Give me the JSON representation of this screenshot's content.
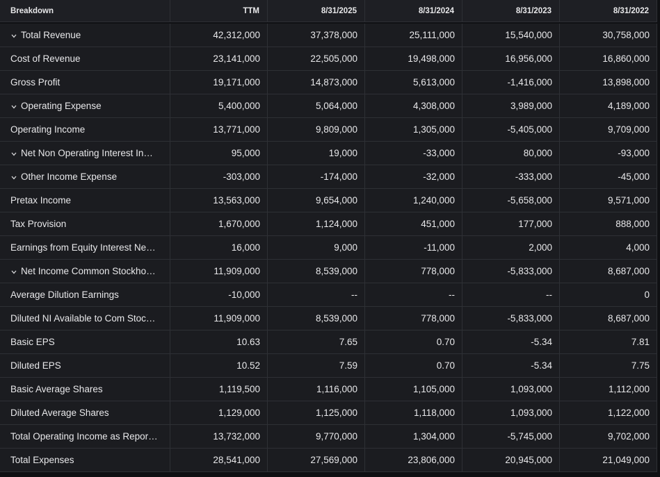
{
  "table": {
    "header": [
      "Breakdown",
      "TTM",
      "8/31/2025",
      "8/31/2024",
      "8/31/2023",
      "8/31/2022"
    ],
    "rows": [
      {
        "label": "Total Revenue",
        "expandable": true,
        "cells": [
          "42,312,000",
          "37,378,000",
          "25,111,000",
          "15,540,000",
          "30,758,000"
        ]
      },
      {
        "label": "Cost of Revenue",
        "expandable": false,
        "cells": [
          "23,141,000",
          "22,505,000",
          "19,498,000",
          "16,956,000",
          "16,860,000"
        ]
      },
      {
        "label": "Gross Profit",
        "expandable": false,
        "cells": [
          "19,171,000",
          "14,873,000",
          "5,613,000",
          "-1,416,000",
          "13,898,000"
        ]
      },
      {
        "label": "Operating Expense",
        "expandable": true,
        "cells": [
          "5,400,000",
          "5,064,000",
          "4,308,000",
          "3,989,000",
          "4,189,000"
        ]
      },
      {
        "label": "Operating Income",
        "expandable": false,
        "cells": [
          "13,771,000",
          "9,809,000",
          "1,305,000",
          "-5,405,000",
          "9,709,000"
        ]
      },
      {
        "label": "Net Non Operating Interest In…",
        "expandable": true,
        "cells": [
          "95,000",
          "19,000",
          "-33,000",
          "80,000",
          "-93,000"
        ]
      },
      {
        "label": "Other Income Expense",
        "expandable": true,
        "cells": [
          "-303,000",
          "-174,000",
          "-32,000",
          "-333,000",
          "-45,000"
        ]
      },
      {
        "label": "Pretax Income",
        "expandable": false,
        "cells": [
          "13,563,000",
          "9,654,000",
          "1,240,000",
          "-5,658,000",
          "9,571,000"
        ]
      },
      {
        "label": "Tax Provision",
        "expandable": false,
        "cells": [
          "1,670,000",
          "1,124,000",
          "451,000",
          "177,000",
          "888,000"
        ]
      },
      {
        "label": "Earnings from Equity Interest Ne…",
        "expandable": false,
        "cells": [
          "16,000",
          "9,000",
          "-11,000",
          "2,000",
          "4,000"
        ]
      },
      {
        "label": "Net Income Common Stockho…",
        "expandable": true,
        "cells": [
          "11,909,000",
          "8,539,000",
          "778,000",
          "-5,833,000",
          "8,687,000"
        ]
      },
      {
        "label": "Average Dilution Earnings",
        "expandable": false,
        "cells": [
          "-10,000",
          "--",
          "--",
          "--",
          "0"
        ]
      },
      {
        "label": "Diluted NI Available to Com Stoc…",
        "expandable": false,
        "cells": [
          "11,909,000",
          "8,539,000",
          "778,000",
          "-5,833,000",
          "8,687,000"
        ]
      },
      {
        "label": "Basic EPS",
        "expandable": false,
        "cells": [
          "10.63",
          "7.65",
          "0.70",
          "-5.34",
          "7.81"
        ]
      },
      {
        "label": "Diluted EPS",
        "expandable": false,
        "cells": [
          "10.52",
          "7.59",
          "0.70",
          "-5.34",
          "7.75"
        ]
      },
      {
        "label": "Basic Average Shares",
        "expandable": false,
        "cells": [
          "1,119,500",
          "1,116,000",
          "1,105,000",
          "1,093,000",
          "1,112,000"
        ]
      },
      {
        "label": "Diluted Average Shares",
        "expandable": false,
        "cells": [
          "1,129,000",
          "1,125,000",
          "1,118,000",
          "1,093,000",
          "1,122,000"
        ]
      },
      {
        "label": "Total Operating Income as Repor…",
        "expandable": false,
        "cells": [
          "13,732,000",
          "9,770,000",
          "1,304,000",
          "-5,745,000",
          "9,702,000"
        ]
      },
      {
        "label": "Total Expenses",
        "expandable": false,
        "cells": [
          "28,541,000",
          "27,569,000",
          "23,806,000",
          "20,945,000",
          "21,049,000"
        ]
      }
    ]
  }
}
